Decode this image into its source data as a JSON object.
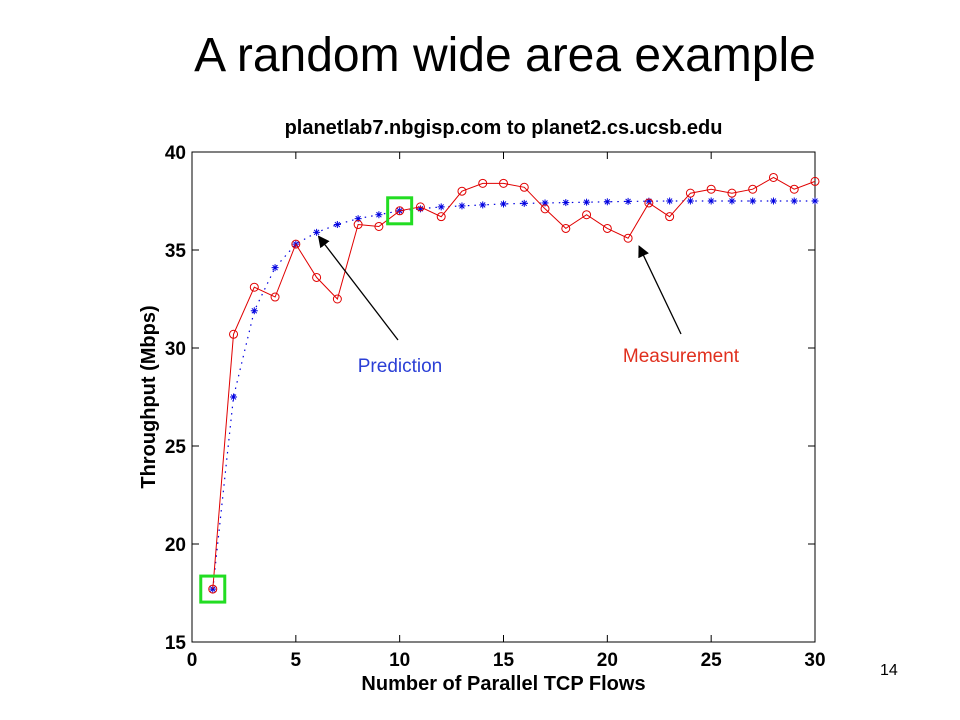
{
  "slide": {
    "title": "A random wide area example",
    "page_number": "14"
  },
  "chart_data": {
    "type": "line",
    "title": "planetlab7.nbgisp.com to planet2.cs.ucsb.edu",
    "xlabel": "Number of Parallel TCP Flows",
    "ylabel": "Throughput (Mbps)",
    "xlim": [
      0,
      30
    ],
    "ylim": [
      15,
      40
    ],
    "xticks": [
      0,
      5,
      10,
      15,
      20,
      25,
      30
    ],
    "yticks": [
      15,
      20,
      25,
      30,
      35,
      40
    ],
    "grid": false,
    "x": [
      1,
      2,
      3,
      4,
      5,
      6,
      7,
      8,
      9,
      10,
      11,
      12,
      13,
      14,
      15,
      16,
      17,
      18,
      19,
      20,
      21,
      22,
      23,
      24,
      25,
      26,
      27,
      28,
      29,
      30
    ],
    "series": [
      {
        "name": "Measurement",
        "color": "#e00000",
        "style": "solid line with circle markers",
        "values": [
          17.7,
          30.7,
          33.1,
          32.6,
          35.3,
          33.6,
          32.5,
          36.3,
          36.2,
          37.0,
          37.2,
          36.7,
          38.0,
          38.4,
          38.4,
          38.2,
          37.1,
          36.1,
          36.8,
          36.1,
          35.6,
          37.4,
          36.7,
          37.9,
          38.1,
          37.9,
          38.1,
          38.7,
          38.1,
          38.5
        ]
      },
      {
        "name": "Prediction",
        "color": "#0000e0",
        "style": "dotted line with star markers",
        "values": [
          17.7,
          27.5,
          31.9,
          34.1,
          35.3,
          35.9,
          36.3,
          36.6,
          36.8,
          37.0,
          37.1,
          37.2,
          37.25,
          37.3,
          37.35,
          37.38,
          37.4,
          37.42,
          37.44,
          37.46,
          37.48,
          37.49,
          37.5,
          37.5,
          37.5,
          37.5,
          37.5,
          37.5,
          37.5,
          37.5
        ]
      }
    ],
    "annotations": [
      {
        "text": "Prediction",
        "color": "#2b3fd6",
        "points_to_x": 6
      },
      {
        "text": "Measurement",
        "color": "#e0301e",
        "points_to_x": 21
      }
    ],
    "highlights": [
      {
        "x": 1,
        "y": 17.7,
        "color": "#22dd22"
      },
      {
        "x": 10,
        "y": 37.0,
        "color": "#22dd22"
      }
    ]
  }
}
